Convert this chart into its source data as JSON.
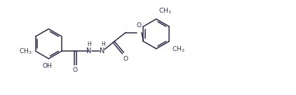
{
  "bg_color": "#ffffff",
  "line_color": "#2a2a4a",
  "fig_width": 4.22,
  "fig_height": 1.36,
  "dpi": 100,
  "lw": 1.1,
  "fs": 6.5,
  "r": 0.48,
  "xlim": [
    0,
    9.5
  ],
  "ylim": [
    0,
    3.0
  ]
}
